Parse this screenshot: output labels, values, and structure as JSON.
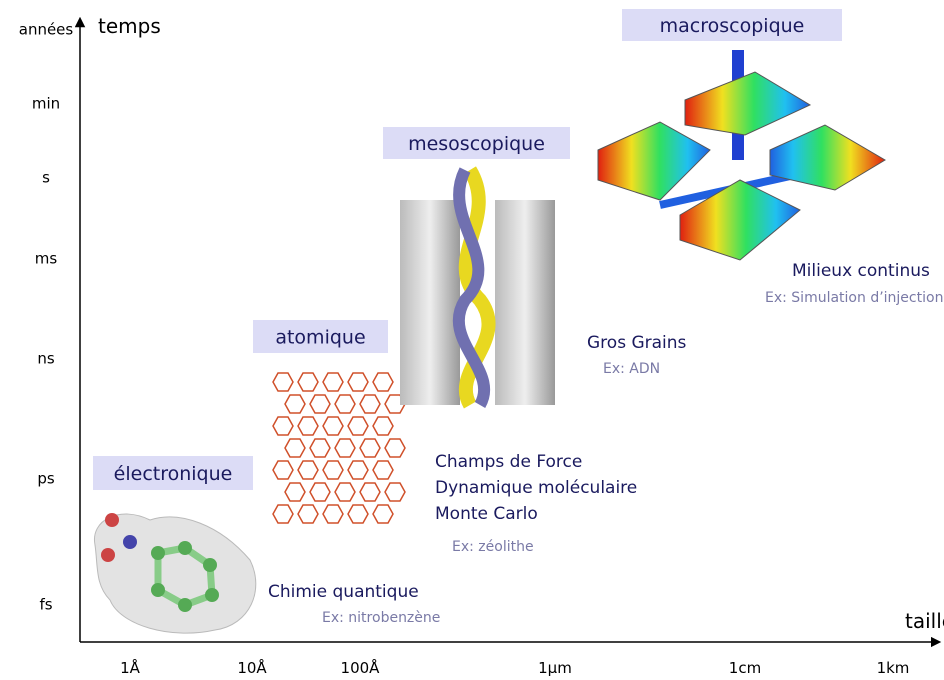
{
  "axes": {
    "y_label": "temps",
    "x_label": "taille",
    "y_ticks": [
      "années",
      "min",
      "s",
      "ms",
      "ns",
      "ps",
      "fs"
    ],
    "x_ticks": [
      "1Å",
      "10Å",
      "100Å",
      "1µm",
      "1cm",
      "1km"
    ]
  },
  "scales": [
    {
      "name": "électronique",
      "methods": [
        "Chimie quantique"
      ],
      "example": "Ex: nitrobenzène"
    },
    {
      "name": "atomique",
      "methods": [
        "Champs de Force",
        "Dynamique moléculaire",
        "Monte Carlo"
      ],
      "example": "Ex: zéolithe"
    },
    {
      "name": "mesoscopique",
      "methods": [
        "Gros Grains"
      ],
      "example": "Ex: ADN"
    },
    {
      "name": "macroscopique",
      "methods": [
        "Milieux continus"
      ],
      "example": "Ex: Simulation d’injection"
    }
  ]
}
